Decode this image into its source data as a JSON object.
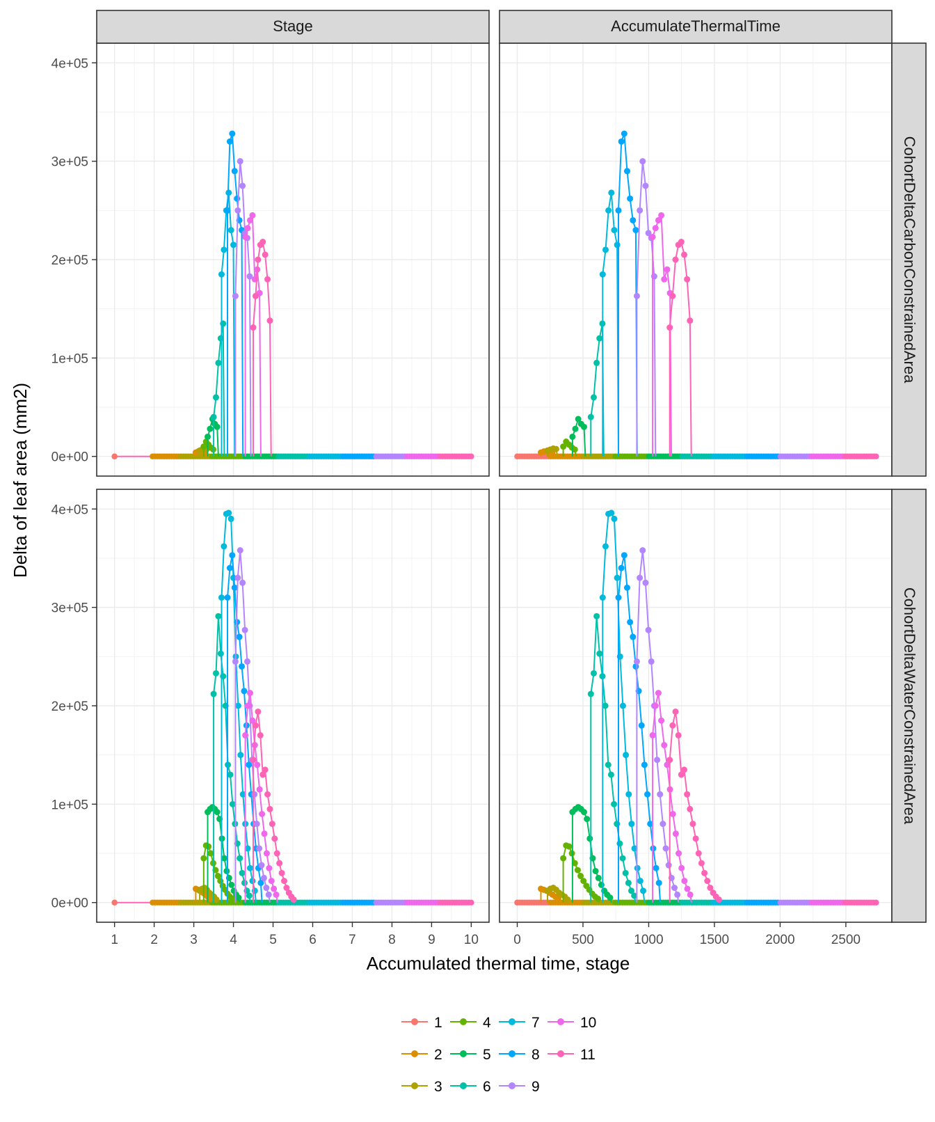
{
  "chart_data": {
    "type": "line",
    "xlabel": "Accumulated thermal time, stage",
    "ylabel": "Delta of leaf area (mm2)",
    "columns": [
      {
        "label": "Stage",
        "xlim": [
          0.55,
          10.45
        ],
        "xticks": [
          1,
          2,
          3,
          4,
          5,
          6,
          7,
          8,
          9,
          10
        ],
        "xtick_labels": [
          "1",
          "2",
          "3",
          "4",
          "5",
          "6",
          "7",
          "8",
          "9",
          "10"
        ]
      },
      {
        "label": "AccumulateThermalTime",
        "xlim": [
          -135,
          2850
        ],
        "xticks": [
          0,
          500,
          1000,
          1500,
          2000,
          2500
        ],
        "xtick_labels": [
          "0",
          "500",
          "1000",
          "1500",
          "2000",
          "2500"
        ]
      }
    ],
    "rows": [
      {
        "label": "CohortDeltaCarbonConstrainedArea"
      },
      {
        "label": "CohortDeltaWaterConstrainedArea"
      }
    ],
    "ylim": [
      -20000,
      420000
    ],
    "yticks": [
      0,
      100000,
      200000,
      300000,
      400000
    ],
    "ytick_labels": [
      "0e+00",
      "1e+05",
      "2e+05",
      "3e+05",
      "4e+05"
    ],
    "grid": true,
    "legend_position": "bottom",
    "series": [
      {
        "name": "1",
        "color": "#F8766D",
        "stage_start": 2.0,
        "thermal_start": 0,
        "carbon": [],
        "water": []
      },
      {
        "name": "2",
        "color": "#DB8E00",
        "stage_start": 3.05,
        "thermal_start": 180,
        "carbon": [
          4000,
          5000,
          5500,
          5000,
          4500
        ],
        "water": [
          14000,
          13000,
          12000,
          10000,
          8000,
          6000,
          4000
        ]
      },
      {
        "name": "3",
        "color": "#AEA200",
        "stage_start": 3.15,
        "thermal_start": 230,
        "carbon": [
          6000,
          7000,
          8000,
          7500
        ],
        "water": [
          12000,
          14000,
          15000,
          13000,
          10000,
          8000,
          6000,
          3000
        ]
      },
      {
        "name": "4",
        "color": "#64B200",
        "stage_start": 3.25,
        "thermal_start": 350,
        "carbon": [
          10000,
          15000,
          12000,
          9000,
          7000
        ],
        "water": [
          45000,
          58000,
          57000,
          50000,
          40000,
          33000,
          27000,
          22000,
          17000,
          13000,
          9000,
          6000,
          4000
        ]
      },
      {
        "name": "5",
        "color": "#00BD5C",
        "stage_start": 3.35,
        "thermal_start": 420,
        "carbon": [
          20000,
          28000,
          38000,
          33000,
          30000
        ],
        "water": [
          92000,
          95000,
          97000,
          95000,
          92000,
          85000,
          65000,
          45000,
          32000,
          25000,
          18000,
          12000,
          8000,
          5000
        ]
      },
      {
        "name": "6",
        "color": "#00C1A7",
        "stage_start": 3.5,
        "thermal_start": 560,
        "carbon": [
          40000,
          60000,
          95000,
          120000,
          135000
        ],
        "water": [
          212000,
          233000,
          291000,
          253000,
          230000,
          200000,
          140000,
          130000,
          100000,
          80000,
          60000,
          45000,
          30000,
          20000,
          12000,
          7000
        ]
      },
      {
        "name": "7",
        "color": "#00BADE",
        "stage_start": 3.7,
        "thermal_start": 650,
        "carbon": [
          185000,
          210000,
          250000,
          268000,
          230000,
          215000
        ],
        "water": [
          310000,
          362000,
          395000,
          396000,
          390000,
          330000,
          250000,
          200000,
          150000,
          110000,
          80000,
          55000,
          35000,
          22000,
          12000
        ]
      },
      {
        "name": "8",
        "color": "#00A6FF",
        "stage_start": 3.85,
        "thermal_start": 770,
        "carbon": [
          250000,
          320000,
          328000,
          290000,
          262000,
          240000,
          230000
        ],
        "water": [
          310000,
          340000,
          353000,
          320000,
          285000,
          270000,
          240000,
          215000,
          180000,
          140000,
          110000,
          80000,
          55000,
          35000,
          20000
        ]
      },
      {
        "name": "9",
        "color": "#B385FF",
        "stage_start": 4.05,
        "thermal_start": 910,
        "carbon": [
          163000,
          250000,
          300000,
          275000,
          227000,
          222000,
          183000
        ],
        "water": [
          245000,
          330000,
          358000,
          325000,
          277000,
          245000,
          200000,
          145000,
          110000,
          80000,
          55000,
          38000,
          25000,
          15000,
          8000
        ]
      },
      {
        "name": "10",
        "color": "#EF67EB",
        "stage_start": 4.3,
        "thermal_start": 1030,
        "carbon": [
          223000,
          232000,
          240000,
          245000,
          180000,
          190000,
          166000
        ],
        "water": [
          170000,
          200000,
          213000,
          185000,
          160000,
          140000,
          115000,
          90000,
          70000,
          50000,
          35000,
          22000,
          14000,
          8000
        ]
      },
      {
        "name": "11",
        "color": "#FF63B6",
        "stage_start": 4.5,
        "thermal_start": 1160,
        "carbon": [
          131000,
          163000,
          200000,
          215000,
          218000,
          205000,
          180000,
          138000
        ],
        "water": [
          145000,
          180000,
          194000,
          170000,
          130000,
          135000,
          110000,
          95000,
          80000,
          65000,
          50000,
          40000,
          30000,
          22000,
          15000,
          10000,
          6000,
          3000
        ]
      }
    ]
  },
  "legend": {
    "items": [
      {
        "label": "1",
        "color": "#F8766D"
      },
      {
        "label": "2",
        "color": "#DB8E00"
      },
      {
        "label": "3",
        "color": "#AEA200"
      },
      {
        "label": "4",
        "color": "#64B200"
      },
      {
        "label": "5",
        "color": "#00BD5C"
      },
      {
        "label": "6",
        "color": "#00C1A7"
      },
      {
        "label": "7",
        "color": "#00BADE"
      },
      {
        "label": "8",
        "color": "#00A6FF"
      },
      {
        "label": "9",
        "color": "#B385FF"
      },
      {
        "label": "10",
        "color": "#EF67EB"
      },
      {
        "label": "11",
        "color": "#FF63B6"
      }
    ]
  }
}
